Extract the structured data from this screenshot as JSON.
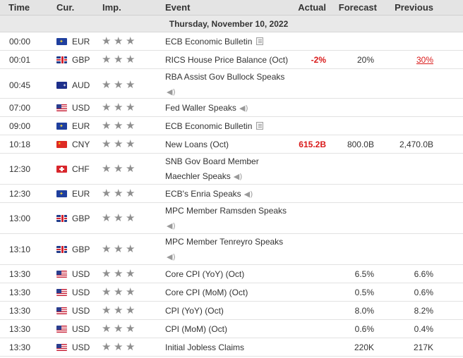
{
  "header": {
    "time": "Time",
    "currency": "Cur.",
    "importance": "Imp.",
    "event": "Event",
    "actual": "Actual",
    "forecast": "Forecast",
    "previous": "Previous"
  },
  "date": "Thursday, November 10, 2022",
  "events": [
    {
      "time": "00:00",
      "flag": "eu",
      "currency": "EUR",
      "stars": 3,
      "event": "ECB Economic Bulletin",
      "icon": "document-icon",
      "actual": "",
      "forecast": "",
      "previous": "",
      "previous_revised": false
    },
    {
      "time": "00:01",
      "flag": "gb",
      "currency": "GBP",
      "stars": 3,
      "event": "RICS House Price Balance (Oct)",
      "icon": "",
      "actual": "-2%",
      "forecast": "20%",
      "previous": "30%",
      "previous_revised": true
    },
    {
      "time": "00:45",
      "flag": "au",
      "currency": "AUD",
      "stars": 3,
      "event": "RBA Assist Gov Bullock Speaks",
      "icon": "speaker-icon",
      "actual": "",
      "forecast": "",
      "previous": "",
      "previous_revised": false
    },
    {
      "time": "07:00",
      "flag": "us",
      "currency": "USD",
      "stars": 3,
      "event": "Fed Waller Speaks",
      "icon": "speaker-icon",
      "actual": "",
      "forecast": "",
      "previous": "",
      "previous_revised": false
    },
    {
      "time": "09:00",
      "flag": "eu",
      "currency": "EUR",
      "stars": 3,
      "event": "ECB Economic Bulletin",
      "icon": "document-icon",
      "actual": "",
      "forecast": "",
      "previous": "",
      "previous_revised": false
    },
    {
      "time": "10:18",
      "flag": "cn",
      "currency": "CNY",
      "stars": 3,
      "event": "New Loans (Oct)",
      "icon": "",
      "actual": "615.2B",
      "forecast": "800.0B",
      "previous": "2,470.0B",
      "previous_revised": false
    },
    {
      "time": "12:30",
      "flag": "ch",
      "currency": "CHF",
      "stars": 3,
      "event": "SNB Gov Board Member Maechler Speaks",
      "icon": "speaker-icon",
      "actual": "",
      "forecast": "",
      "previous": "",
      "previous_revised": false
    },
    {
      "time": "12:30",
      "flag": "eu",
      "currency": "EUR",
      "stars": 3,
      "event": "ECB's Enria Speaks",
      "icon": "speaker-icon",
      "actual": "",
      "forecast": "",
      "previous": "",
      "previous_revised": false
    },
    {
      "time": "13:00",
      "flag": "gb",
      "currency": "GBP",
      "stars": 3,
      "event": "MPC Member Ramsden Speaks",
      "icon": "speaker-icon",
      "actual": "",
      "forecast": "",
      "previous": "",
      "previous_revised": false
    },
    {
      "time": "13:10",
      "flag": "gb",
      "currency": "GBP",
      "stars": 3,
      "event": "MPC Member Tenreyro Speaks",
      "icon": "speaker-icon",
      "actual": "",
      "forecast": "",
      "previous": "",
      "previous_revised": false
    },
    {
      "time": "13:30",
      "flag": "us",
      "currency": "USD",
      "stars": 3,
      "event": "Core CPI (YoY) (Oct)",
      "icon": "",
      "actual": "",
      "forecast": "6.5%",
      "previous": "6.6%",
      "previous_revised": false
    },
    {
      "time": "13:30",
      "flag": "us",
      "currency": "USD",
      "stars": 3,
      "event": "Core CPI (MoM) (Oct)",
      "icon": "",
      "actual": "",
      "forecast": "0.5%",
      "previous": "0.6%",
      "previous_revised": false
    },
    {
      "time": "13:30",
      "flag": "us",
      "currency": "USD",
      "stars": 3,
      "event": "CPI (YoY) (Oct)",
      "icon": "",
      "actual": "",
      "forecast": "8.0%",
      "previous": "8.2%",
      "previous_revised": false
    },
    {
      "time": "13:30",
      "flag": "us",
      "currency": "USD",
      "stars": 3,
      "event": "CPI (MoM) (Oct)",
      "icon": "",
      "actual": "",
      "forecast": "0.6%",
      "previous": "0.4%",
      "previous_revised": false
    },
    {
      "time": "13:30",
      "flag": "us",
      "currency": "USD",
      "stars": 3,
      "event": "Initial Jobless Claims",
      "icon": "",
      "actual": "",
      "forecast": "220K",
      "previous": "217K",
      "previous_revised": false
    }
  ]
}
